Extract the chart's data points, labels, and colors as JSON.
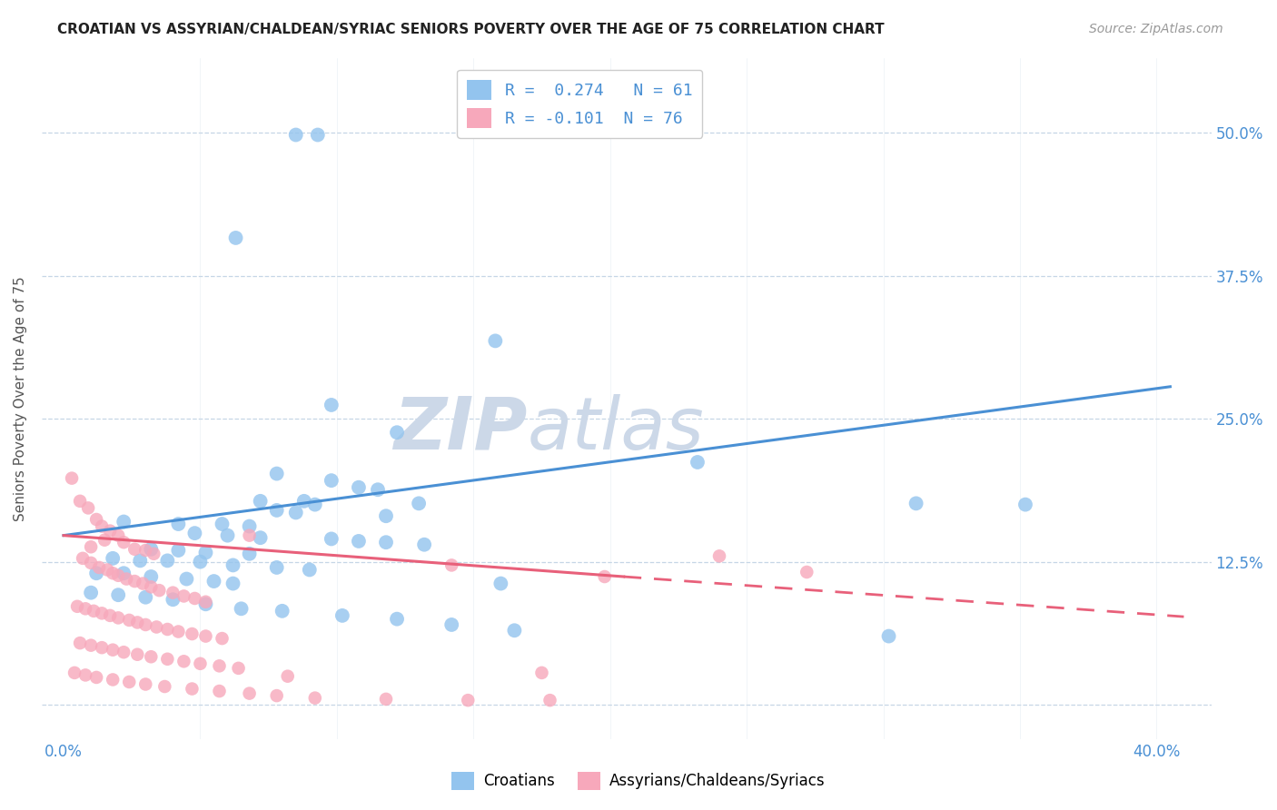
{
  "title": "CROATIAN VS ASSYRIAN/CHALDEAN/SYRIAC SENIORS POVERTY OVER THE AGE OF 75 CORRELATION CHART",
  "source": "Source: ZipAtlas.com",
  "ylabel": "Seniors Poverty Over the Age of 75",
  "ytick_values": [
    0.0,
    0.125,
    0.25,
    0.375,
    0.5
  ],
  "ytick_labels": [
    "",
    "12.5%",
    "25.0%",
    "37.5%",
    "50.0%"
  ],
  "xtick_values": [
    0.0,
    0.05,
    0.1,
    0.15,
    0.2,
    0.25,
    0.3,
    0.35,
    0.4
  ],
  "xtick_labels": [
    "0.0%",
    "",
    "",
    "",
    "",
    "",
    "",
    "",
    "40.0%"
  ],
  "xlim": [
    -0.008,
    0.42
  ],
  "ylim": [
    -0.03,
    0.565
  ],
  "legend_line1": "R =  0.274   N = 61",
  "legend_line2": "R = -0.101  N = 76",
  "croatian_color": "#93c4ee",
  "assyrian_color": "#f7a8bb",
  "trendline_croatian_color": "#4a90d4",
  "trendline_assyrian_color": "#e8607a",
  "watermark_zip": "ZIP",
  "watermark_atlas": "atlas",
  "watermark_color": "#ccd8e8",
  "trendline_croatian_x0": 0.0,
  "trendline_croatian_y0": 0.148,
  "trendline_croatian_x1": 0.405,
  "trendline_croatian_y1": 0.278,
  "trendline_assyrian_solid_x0": 0.0,
  "trendline_assyrian_solid_y0": 0.148,
  "trendline_assyrian_solid_x1": 0.205,
  "trendline_assyrian_solid_y1": 0.112,
  "trendline_assyrian_dashed_x0": 0.205,
  "trendline_assyrian_dashed_y0": 0.112,
  "trendline_assyrian_dashed_x1": 0.41,
  "trendline_assyrian_dashed_y1": 0.077,
  "croatian_points": [
    [
      0.085,
      0.498
    ],
    [
      0.093,
      0.498
    ],
    [
      0.063,
      0.408
    ],
    [
      0.158,
      0.318
    ],
    [
      0.098,
      0.262
    ],
    [
      0.122,
      0.238
    ],
    [
      0.078,
      0.202
    ],
    [
      0.098,
      0.196
    ],
    [
      0.108,
      0.19
    ],
    [
      0.115,
      0.188
    ],
    [
      0.072,
      0.178
    ],
    [
      0.088,
      0.178
    ],
    [
      0.092,
      0.175
    ],
    [
      0.13,
      0.176
    ],
    [
      0.078,
      0.17
    ],
    [
      0.085,
      0.168
    ],
    [
      0.118,
      0.165
    ],
    [
      0.022,
      0.16
    ],
    [
      0.042,
      0.158
    ],
    [
      0.058,
      0.158
    ],
    [
      0.068,
      0.156
    ],
    [
      0.048,
      0.15
    ],
    [
      0.06,
      0.148
    ],
    [
      0.072,
      0.146
    ],
    [
      0.098,
      0.145
    ],
    [
      0.108,
      0.143
    ],
    [
      0.118,
      0.142
    ],
    [
      0.132,
      0.14
    ],
    [
      0.032,
      0.136
    ],
    [
      0.042,
      0.135
    ],
    [
      0.052,
      0.133
    ],
    [
      0.068,
      0.132
    ],
    [
      0.018,
      0.128
    ],
    [
      0.028,
      0.126
    ],
    [
      0.038,
      0.126
    ],
    [
      0.05,
      0.125
    ],
    [
      0.062,
      0.122
    ],
    [
      0.078,
      0.12
    ],
    [
      0.09,
      0.118
    ],
    [
      0.012,
      0.115
    ],
    [
      0.022,
      0.115
    ],
    [
      0.032,
      0.112
    ],
    [
      0.045,
      0.11
    ],
    [
      0.055,
      0.108
    ],
    [
      0.062,
      0.106
    ],
    [
      0.16,
      0.106
    ],
    [
      0.01,
      0.098
    ],
    [
      0.02,
      0.096
    ],
    [
      0.03,
      0.094
    ],
    [
      0.04,
      0.092
    ],
    [
      0.052,
      0.088
    ],
    [
      0.065,
      0.084
    ],
    [
      0.08,
      0.082
    ],
    [
      0.102,
      0.078
    ],
    [
      0.122,
      0.075
    ],
    [
      0.142,
      0.07
    ],
    [
      0.165,
      0.065
    ],
    [
      0.232,
      0.212
    ],
    [
      0.312,
      0.176
    ],
    [
      0.352,
      0.175
    ],
    [
      0.302,
      0.06
    ]
  ],
  "assyrian_points": [
    [
      0.003,
      0.198
    ],
    [
      0.006,
      0.178
    ],
    [
      0.009,
      0.172
    ],
    [
      0.012,
      0.162
    ],
    [
      0.014,
      0.156
    ],
    [
      0.017,
      0.152
    ],
    [
      0.02,
      0.148
    ],
    [
      0.015,
      0.144
    ],
    [
      0.022,
      0.142
    ],
    [
      0.01,
      0.138
    ],
    [
      0.026,
      0.136
    ],
    [
      0.03,
      0.135
    ],
    [
      0.033,
      0.132
    ],
    [
      0.007,
      0.128
    ],
    [
      0.01,
      0.124
    ],
    [
      0.013,
      0.12
    ],
    [
      0.016,
      0.118
    ],
    [
      0.018,
      0.115
    ],
    [
      0.02,
      0.113
    ],
    [
      0.023,
      0.11
    ],
    [
      0.026,
      0.108
    ],
    [
      0.029,
      0.106
    ],
    [
      0.032,
      0.103
    ],
    [
      0.035,
      0.1
    ],
    [
      0.04,
      0.098
    ],
    [
      0.044,
      0.095
    ],
    [
      0.048,
      0.093
    ],
    [
      0.052,
      0.09
    ],
    [
      0.005,
      0.086
    ],
    [
      0.008,
      0.084
    ],
    [
      0.011,
      0.082
    ],
    [
      0.014,
      0.08
    ],
    [
      0.017,
      0.078
    ],
    [
      0.02,
      0.076
    ],
    [
      0.024,
      0.074
    ],
    [
      0.027,
      0.072
    ],
    [
      0.03,
      0.07
    ],
    [
      0.034,
      0.068
    ],
    [
      0.038,
      0.066
    ],
    [
      0.042,
      0.064
    ],
    [
      0.047,
      0.062
    ],
    [
      0.052,
      0.06
    ],
    [
      0.058,
      0.058
    ],
    [
      0.006,
      0.054
    ],
    [
      0.01,
      0.052
    ],
    [
      0.014,
      0.05
    ],
    [
      0.018,
      0.048
    ],
    [
      0.022,
      0.046
    ],
    [
      0.027,
      0.044
    ],
    [
      0.032,
      0.042
    ],
    [
      0.038,
      0.04
    ],
    [
      0.044,
      0.038
    ],
    [
      0.05,
      0.036
    ],
    [
      0.057,
      0.034
    ],
    [
      0.064,
      0.032
    ],
    [
      0.004,
      0.028
    ],
    [
      0.008,
      0.026
    ],
    [
      0.012,
      0.024
    ],
    [
      0.018,
      0.022
    ],
    [
      0.024,
      0.02
    ],
    [
      0.03,
      0.018
    ],
    [
      0.037,
      0.016
    ],
    [
      0.047,
      0.014
    ],
    [
      0.057,
      0.012
    ],
    [
      0.068,
      0.01
    ],
    [
      0.078,
      0.008
    ],
    [
      0.092,
      0.006
    ],
    [
      0.118,
      0.005
    ],
    [
      0.148,
      0.004
    ],
    [
      0.178,
      0.004
    ],
    [
      0.142,
      0.122
    ],
    [
      0.198,
      0.112
    ],
    [
      0.24,
      0.13
    ],
    [
      0.272,
      0.116
    ],
    [
      0.068,
      0.148
    ],
    [
      0.082,
      0.025
    ],
    [
      0.175,
      0.028
    ]
  ]
}
